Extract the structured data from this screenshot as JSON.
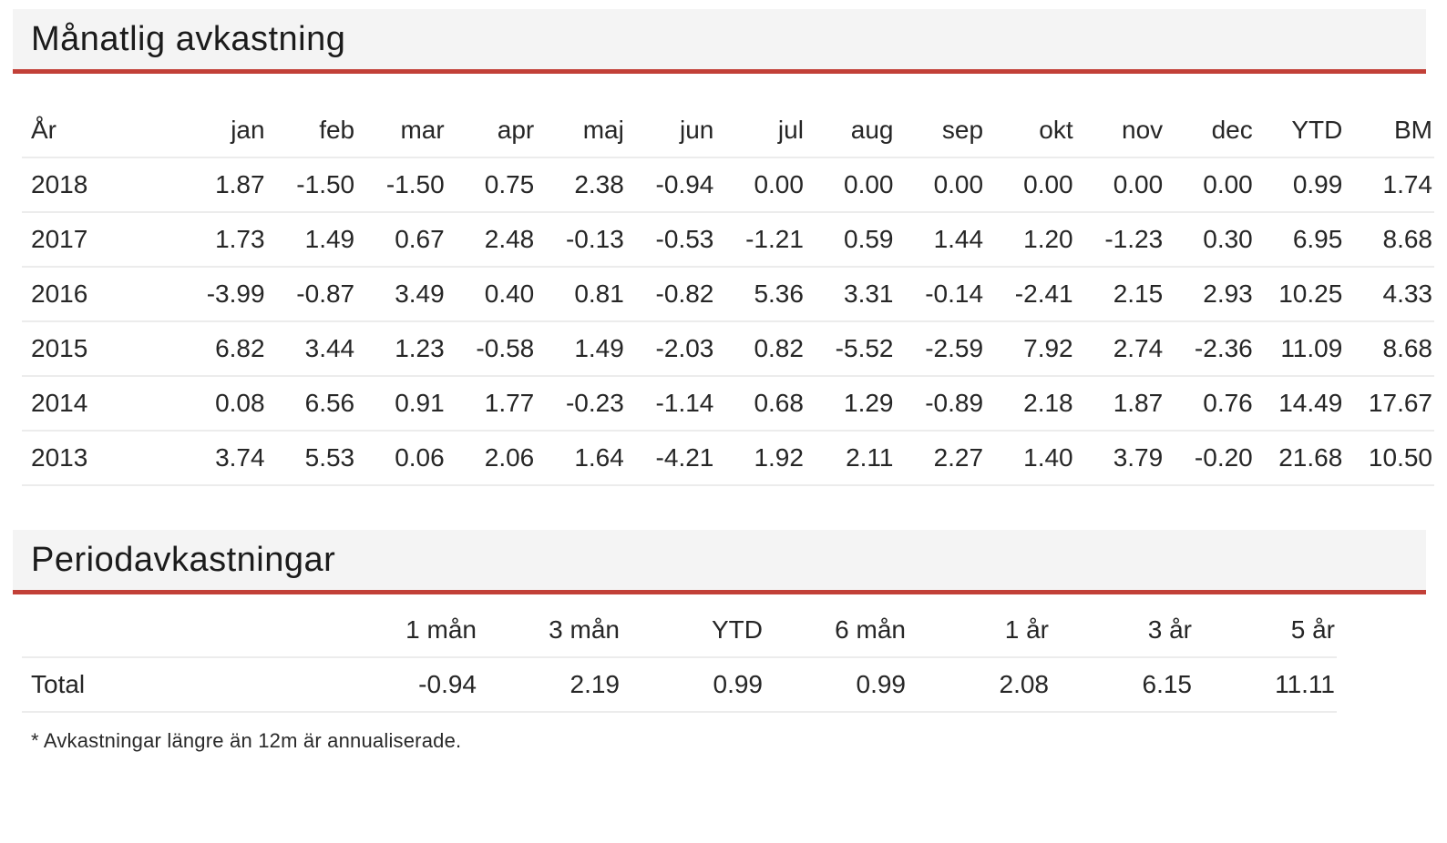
{
  "colors": {
    "accent_red": "#c24038",
    "band_gray": "#f4f4f4",
    "separator": "#ececec",
    "text": "#222222"
  },
  "monthly": {
    "title": "Månatlig avkastning",
    "columns": [
      "År",
      "jan",
      "feb",
      "mar",
      "apr",
      "maj",
      "jun",
      "jul",
      "aug",
      "sep",
      "okt",
      "nov",
      "dec",
      "YTD",
      "BM"
    ],
    "rows": [
      {
        "label": "2018",
        "values": [
          "1.87",
          "-1.50",
          "-1.50",
          "0.75",
          "2.38",
          "-0.94",
          "0.00",
          "0.00",
          "0.00",
          "0.00",
          "0.00",
          "0.00",
          "0.99",
          "1.74"
        ]
      },
      {
        "label": "2017",
        "values": [
          "1.73",
          "1.49",
          "0.67",
          "2.48",
          "-0.13",
          "-0.53",
          "-1.21",
          "0.59",
          "1.44",
          "1.20",
          "-1.23",
          "0.30",
          "6.95",
          "8.68"
        ]
      },
      {
        "label": "2016",
        "values": [
          "-3.99",
          "-0.87",
          "3.49",
          "0.40",
          "0.81",
          "-0.82",
          "5.36",
          "3.31",
          "-0.14",
          "-2.41",
          "2.15",
          "2.93",
          "10.25",
          "4.33"
        ]
      },
      {
        "label": "2015",
        "values": [
          "6.82",
          "3.44",
          "1.23",
          "-0.58",
          "1.49",
          "-2.03",
          "0.82",
          "-5.52",
          "-2.59",
          "7.92",
          "2.74",
          "-2.36",
          "11.09",
          "8.68"
        ]
      },
      {
        "label": "2014",
        "values": [
          "0.08",
          "6.56",
          "0.91",
          "1.77",
          "-0.23",
          "-1.14",
          "0.68",
          "1.29",
          "-0.89",
          "2.18",
          "1.87",
          "0.76",
          "14.49",
          "17.67"
        ]
      },
      {
        "label": "2013",
        "values": [
          "3.74",
          "5.53",
          "0.06",
          "2.06",
          "1.64",
          "-4.21",
          "1.92",
          "2.11",
          "2.27",
          "1.40",
          "3.79",
          "-0.20",
          "21.68",
          "10.50"
        ]
      }
    ]
  },
  "period": {
    "title": "Periodavkastningar",
    "columns": [
      "",
      "1 mån",
      "3 mån",
      "YTD",
      "6 mån",
      "1 år",
      "3 år",
      "5 år"
    ],
    "rows": [
      {
        "label": "Total",
        "values": [
          "-0.94",
          "2.19",
          "0.99",
          "0.99",
          "2.08",
          "6.15",
          "11.11"
        ]
      }
    ],
    "footnote": "* Avkastningar längre än 12m är annualiserade."
  }
}
